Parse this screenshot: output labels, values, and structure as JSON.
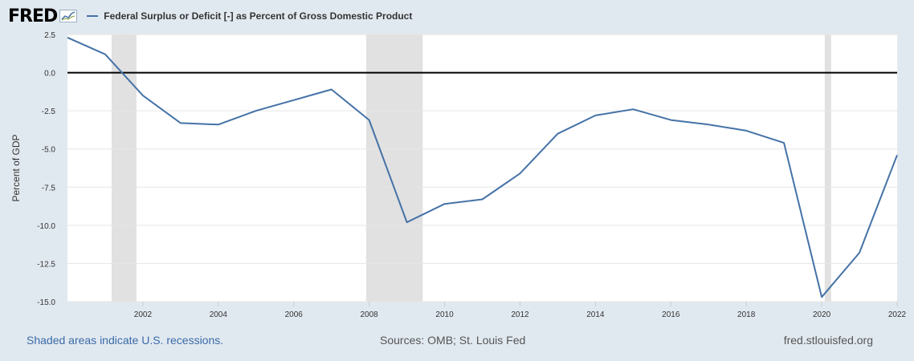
{
  "header": {
    "logo_text": "FRED",
    "legend_label": "Federal Surplus or Deficit [-] as Percent of Gross Domestic Product"
  },
  "footer": {
    "recession_note": "Shaded areas indicate U.S. recessions.",
    "sources": "Sources: OMB; St. Louis Fed",
    "site": "fred.stlouisfed.org"
  },
  "colors": {
    "background": "#e1e9f0",
    "plot_background": "#ffffff",
    "series": "#4572a7",
    "recession": "#e1e1e1",
    "zero_line": "#000000"
  },
  "chart_data": {
    "type": "line",
    "title": "",
    "xlabel": "",
    "ylabel": "Percent of GDP",
    "xlim": [
      2000,
      2022
    ],
    "ylim": [
      -15,
      2.5
    ],
    "grid": true,
    "x_ticks": [
      "2002",
      "2004",
      "2006",
      "2008",
      "2010",
      "2012",
      "2014",
      "2016",
      "2018",
      "2020",
      "2022"
    ],
    "y_ticks": [
      "2.5",
      "0.0",
      "-2.5",
      "-5.0",
      "-7.5",
      "-10.0",
      "-12.5",
      "-15.0"
    ],
    "recessions": [
      [
        2001.17,
        2001.83
      ],
      [
        2007.92,
        2009.42
      ],
      [
        2020.08,
        2020.25
      ]
    ],
    "series": [
      {
        "name": "Federal Surplus or Deficit [-] as Percent of Gross Domestic Product",
        "x": [
          2000,
          2001,
          2002,
          2003,
          2004,
          2005,
          2006,
          2007,
          2008,
          2009,
          2010,
          2011,
          2012,
          2013,
          2014,
          2015,
          2016,
          2017,
          2018,
          2019,
          2020,
          2021,
          2022
        ],
        "values": [
          2.3,
          1.2,
          -1.5,
          -3.3,
          -3.4,
          -2.5,
          -1.8,
          -1.1,
          -3.1,
          -9.8,
          -8.6,
          -8.3,
          -6.6,
          -4.0,
          -2.8,
          -2.4,
          -3.1,
          -3.4,
          -3.8,
          -4.6,
          -14.7,
          -11.8,
          -5.4
        ]
      }
    ]
  }
}
